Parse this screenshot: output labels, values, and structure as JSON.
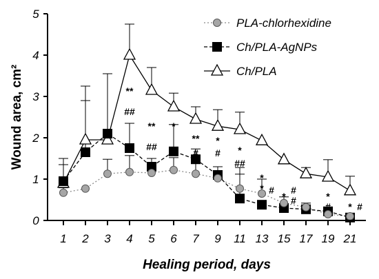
{
  "chart_data": {
    "type": "line",
    "xlabel": "Healing period, days",
    "ylabel": "Wound area, cm²",
    "x_categories": [
      "1",
      "2",
      "3",
      "4",
      "5",
      "6",
      "7",
      "9",
      "11",
      "13",
      "15",
      "17",
      "19",
      "21"
    ],
    "ylim": [
      0,
      5
    ],
    "yticks": [
      "0",
      "1",
      "2",
      "3",
      "4",
      "5"
    ],
    "legend_position": "top-right",
    "series": [
      {
        "name": "PLA-chlorhexidine",
        "marker": "circle",
        "line": "dotted",
        "color": "#999999",
        "values": [
          0.67,
          0.77,
          1.13,
          1.17,
          1.15,
          1.22,
          1.13,
          1.02,
          0.77,
          0.65,
          0.42,
          0.32,
          0.15,
          0.1
        ],
        "error": [
          0.12,
          0.0,
          0.35,
          0.4,
          0.35,
          0.3,
          0.25,
          0.15,
          0.35,
          0.35,
          0.15,
          0.1,
          0.12,
          0.05
        ]
      },
      {
        "name": "Ch/PLA-AgNPs",
        "marker": "square",
        "line": "dashed",
        "color": "#000000",
        "values": [
          0.95,
          1.65,
          2.1,
          1.75,
          1.3,
          1.67,
          1.48,
          1.1,
          0.53,
          0.38,
          0.3,
          0.27,
          0.22,
          0.07
        ],
        "error": [
          0.4,
          1.25,
          1.45,
          0.6,
          0.2,
          0.65,
          0.25,
          0.2,
          0.75,
          0.0,
          0.0,
          0.0,
          0.0,
          0.0
        ]
      },
      {
        "name": "Ch/PLA",
        "marker": "triangle",
        "line": "solid",
        "color": "#000000",
        "values": [
          0.9,
          1.95,
          1.95,
          4.0,
          3.15,
          2.75,
          2.45,
          2.28,
          2.2,
          1.93,
          1.47,
          1.13,
          1.05,
          0.72
        ],
        "error": [
          0.6,
          1.3,
          1.6,
          0.75,
          0.55,
          0.33,
          0.3,
          0.4,
          0.42,
          0.0,
          0.0,
          0.15,
          0.42,
          0.35
        ]
      }
    ],
    "annotations": [
      {
        "text": "**",
        "x": "4",
        "y": 3.15
      },
      {
        "text": "##",
        "x": "4",
        "y": 2.65
      },
      {
        "text": "**",
        "x": "5",
        "y": 2.3
      },
      {
        "text": "##",
        "x": "5",
        "y": 1.8
      },
      {
        "text": "*",
        "x": "6",
        "y": 2.3
      },
      {
        "text": "**",
        "x": "7",
        "y": 2.0
      },
      {
        "text": "#",
        "x": "7",
        "y": 1.65
      },
      {
        "text": "*",
        "x": "9",
        "y": 1.95
      },
      {
        "text": "#",
        "x": "9",
        "y": 1.65
      },
      {
        "text": "*",
        "x": "11",
        "y": 1.72
      },
      {
        "text": "##",
        "x": "11",
        "y": 1.4
      },
      {
        "text": "*",
        "x": "13",
        "y": 1.05
      },
      {
        "text": "*",
        "x": "13",
        "y": 0.8
      },
      {
        "text": "#",
        "x": "13",
        "y": 0.75
      },
      {
        "text": "*",
        "x": "15",
        "y": 0.6
      },
      {
        "text": "#",
        "x": "15",
        "y": 0.75
      },
      {
        "text": "#",
        "x": "15",
        "y": 0.5
      },
      {
        "text": "*",
        "x": "19",
        "y": 0.6
      },
      {
        "text": "#",
        "x": "19",
        "y": 0.35
      },
      {
        "text": "*",
        "x": "21",
        "y": 0.35
      },
      {
        "text": "#",
        "x": "21",
        "y": 0.35
      }
    ]
  }
}
